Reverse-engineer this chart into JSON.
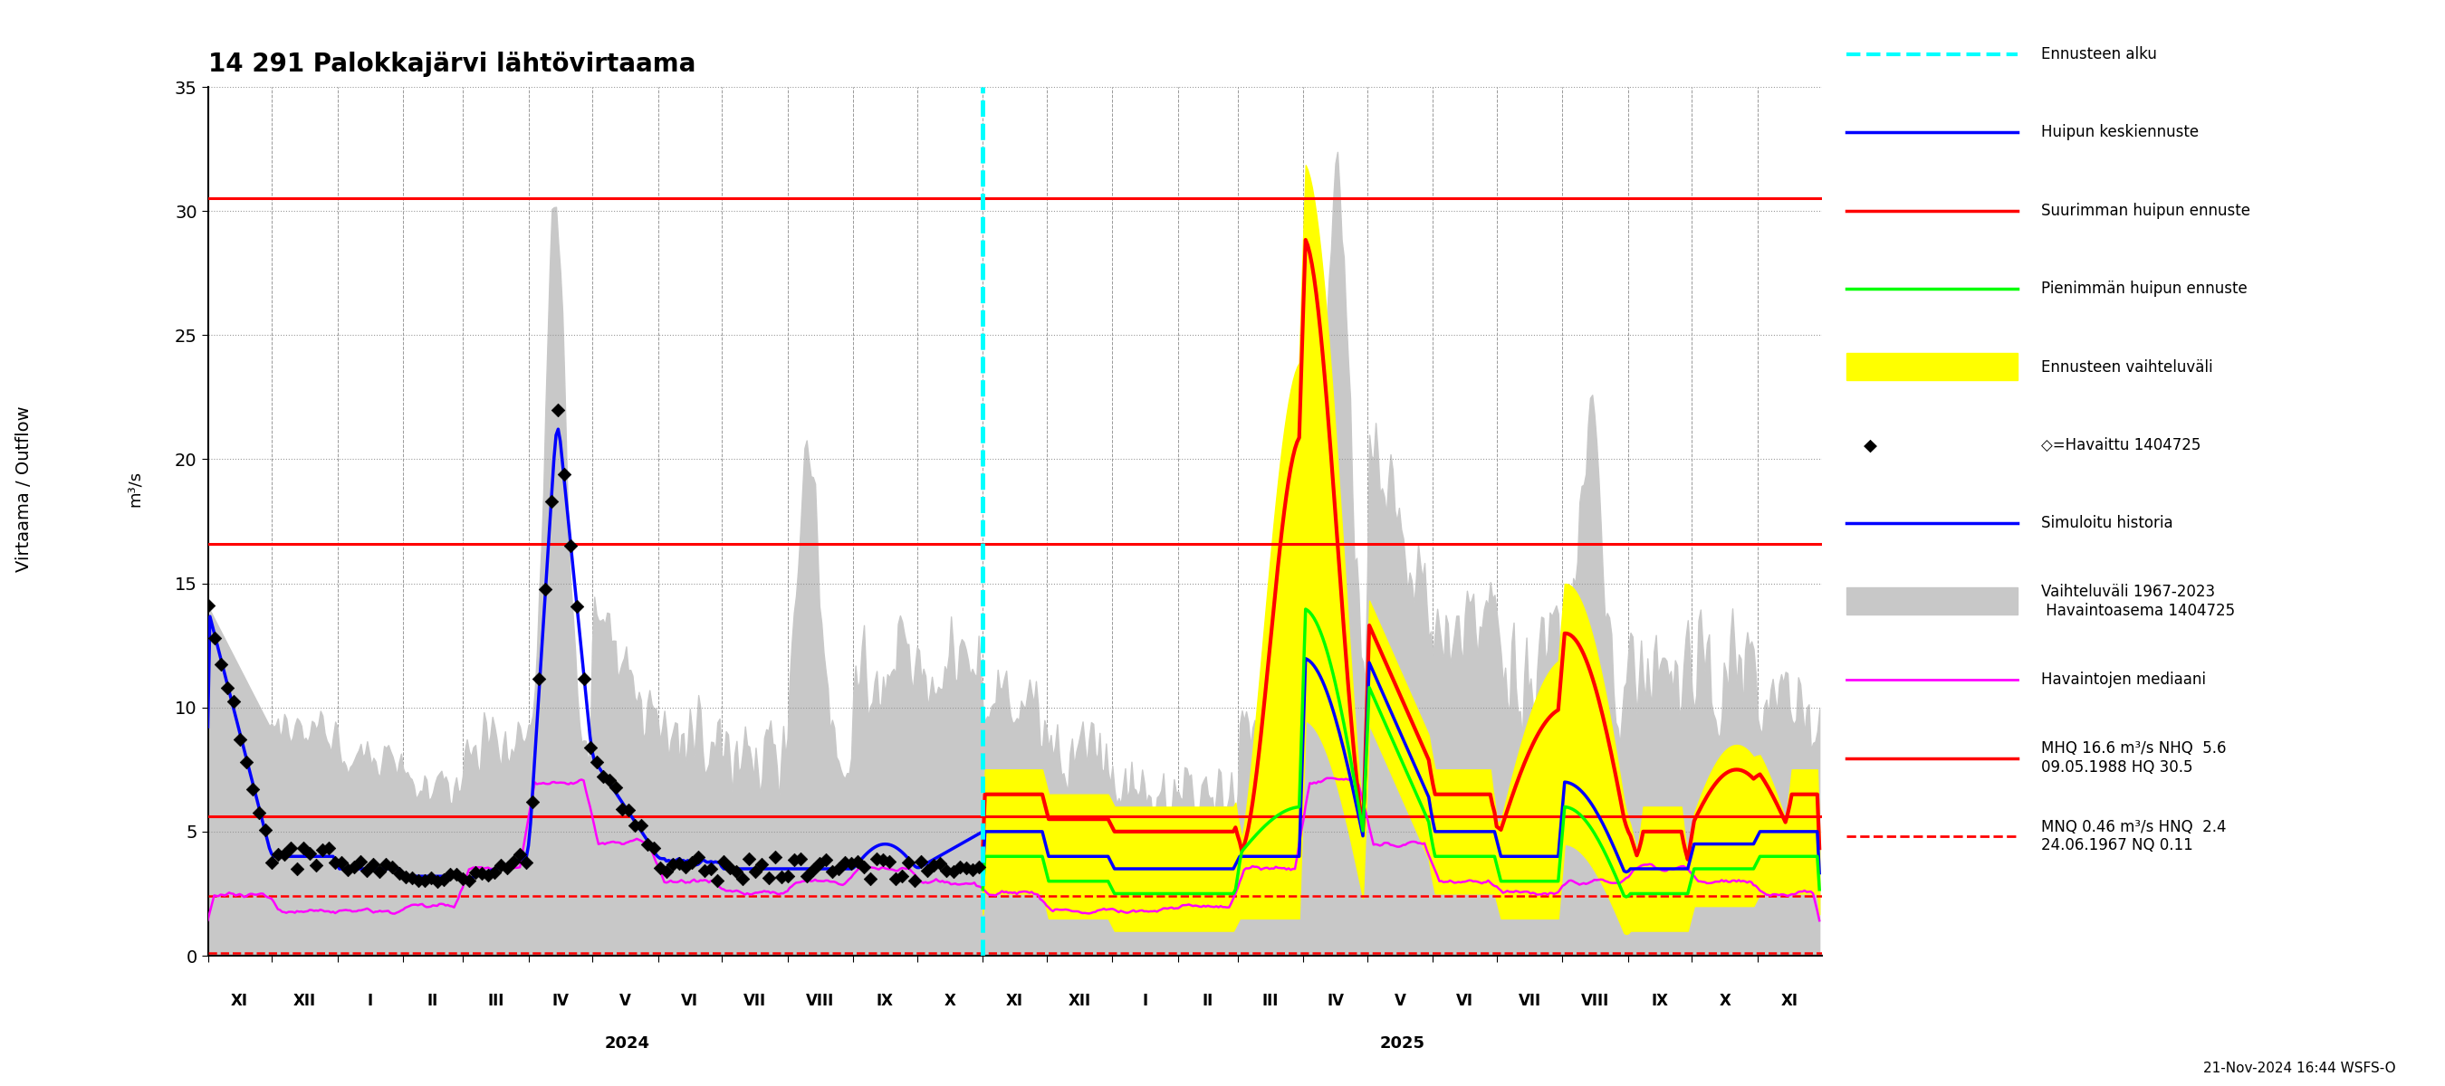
{
  "title": "14 291 Palokkajärvi lähtövirtaama",
  "ylabel": "Virtaama / Outflow",
  "ylabel2": "m³/s",
  "ylim": [
    0,
    35
  ],
  "yticks": [
    0,
    5,
    10,
    15,
    20,
    25,
    30,
    35
  ],
  "hline_red_solid": [
    30.5,
    16.6,
    5.6
  ],
  "hline_red_dashed": [
    2.4,
    0.11
  ],
  "footer": "21-Nov-2024 16:44 WSFS-O",
  "legend_entries": [
    "Ennusteen alku",
    "Huipun keskiennuste",
    "Suurimman huipun ennuste",
    "Pienimmän huipun ennuste",
    "Ennusteen vaihteluväli",
    "◇=Havaittu 1404725",
    "Simuloitu historia",
    "Vaihteluväli 1967-2023\n Havaintoasema 1404725",
    "Havaintojen mediaani",
    "MHQ 16.6 m³/s NHQ  5.6\n09.05.1988 HQ 30.5",
    "MNQ 0.46 m³/s HNQ  2.4\n24.06.1967 NQ 0.11"
  ],
  "month_labels": [
    "XI",
    "XII",
    "I",
    "II",
    "III",
    "IV",
    "V",
    "VI",
    "VII",
    "VIII",
    "IX",
    "X",
    "XI",
    "XII",
    "I",
    "II",
    "III",
    "IV",
    "V",
    "VI",
    "VII",
    "VIII",
    "IX",
    "X",
    "XI"
  ],
  "month_days": [
    30,
    31,
    31,
    28,
    31,
    30,
    31,
    30,
    31,
    31,
    30,
    31,
    30,
    31,
    31,
    28,
    31,
    30,
    31,
    30,
    31,
    31,
    30,
    31,
    30
  ]
}
